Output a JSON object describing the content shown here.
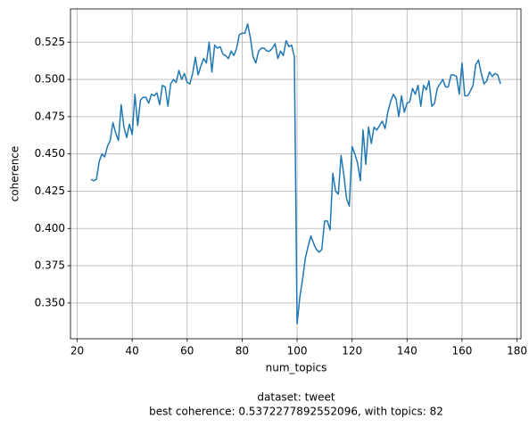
{
  "chart_data": {
    "type": "line",
    "xlabel": "num_topics",
    "ylabel": "coherence",
    "caption": [
      "dataset: tweet",
      "best coherence: 0.5372277892552096, with topics: 82"
    ],
    "x": [
      25,
      26,
      27,
      28,
      29,
      30,
      31,
      32,
      33,
      34,
      35,
      36,
      37,
      38,
      39,
      40,
      41,
      42,
      43,
      44,
      45,
      46,
      47,
      48,
      49,
      50,
      51,
      52,
      53,
      54,
      55,
      56,
      57,
      58,
      59,
      60,
      61,
      62,
      63,
      64,
      65,
      66,
      67,
      68,
      69,
      70,
      71,
      72,
      73,
      74,
      75,
      76,
      77,
      78,
      79,
      80,
      81,
      82,
      83,
      84,
      85,
      86,
      87,
      88,
      89,
      90,
      91,
      92,
      93,
      94,
      95,
      96,
      97,
      98,
      99,
      100,
      101,
      102,
      103,
      104,
      105,
      106,
      107,
      108,
      109,
      110,
      111,
      112,
      113,
      114,
      115,
      116,
      117,
      118,
      119,
      120,
      121,
      122,
      123,
      124,
      125,
      126,
      127,
      128,
      129,
      130,
      131,
      132,
      133,
      134,
      135,
      136,
      137,
      138,
      139,
      140,
      141,
      142,
      143,
      144,
      145,
      146,
      147,
      148,
      149,
      150,
      151,
      152,
      153,
      154,
      155,
      156,
      157,
      158,
      159,
      160,
      161,
      162,
      163,
      164,
      165,
      166,
      167,
      168,
      169,
      170,
      171,
      172,
      173,
      174
    ],
    "series": [
      {
        "name": "coherence",
        "color": "#1f77b4",
        "values": [
          0.433,
          0.432,
          0.433,
          0.445,
          0.45,
          0.448,
          0.455,
          0.459,
          0.471,
          0.464,
          0.459,
          0.483,
          0.468,
          0.461,
          0.47,
          0.463,
          0.49,
          0.469,
          0.486,
          0.488,
          0.488,
          0.484,
          0.49,
          0.489,
          0.491,
          0.483,
          0.496,
          0.495,
          0.482,
          0.497,
          0.5,
          0.498,
          0.506,
          0.5,
          0.504,
          0.498,
          0.497,
          0.504,
          0.515,
          0.503,
          0.509,
          0.514,
          0.511,
          0.525,
          0.505,
          0.523,
          0.521,
          0.522,
          0.517,
          0.516,
          0.514,
          0.519,
          0.516,
          0.521,
          0.53,
          0.531,
          0.531,
          0.5372277892552096,
          0.528,
          0.515,
          0.511,
          0.519,
          0.521,
          0.521,
          0.519,
          0.519,
          0.521,
          0.524,
          0.514,
          0.519,
          0.516,
          0.526,
          0.522,
          0.523,
          0.515,
          0.336,
          0.354,
          0.366,
          0.38,
          0.388,
          0.395,
          0.39,
          0.386,
          0.384,
          0.386,
          0.405,
          0.405,
          0.399,
          0.437,
          0.425,
          0.423,
          0.449,
          0.436,
          0.42,
          0.415,
          0.455,
          0.45,
          0.444,
          0.432,
          0.466,
          0.443,
          0.468,
          0.457,
          0.468,
          0.466,
          0.469,
          0.472,
          0.467,
          0.478,
          0.485,
          0.49,
          0.487,
          0.475,
          0.489,
          0.478,
          0.484,
          0.485,
          0.494,
          0.49,
          0.496,
          0.482,
          0.496,
          0.493,
          0.499,
          0.482,
          0.484,
          0.494,
          0.497,
          0.5,
          0.495,
          0.495,
          0.503,
          0.503,
          0.502,
          0.49,
          0.511,
          0.489,
          0.489,
          0.492,
          0.496,
          0.51,
          0.513,
          0.504,
          0.497,
          0.499,
          0.505,
          0.502,
          0.504,
          0.503,
          0.497
        ]
      }
    ],
    "xlim": [
      17.55,
      181.45
    ],
    "xticks": [
      20,
      40,
      60,
      80,
      100,
      120,
      140,
      160,
      180
    ],
    "ylim": [
      0.326,
      0.5473
    ],
    "yticks": [
      {
        "value": 0.35,
        "label": "0.350"
      },
      0.375,
      {
        "value": 0.4,
        "label": "0.400"
      },
      0.425,
      {
        "value": 0.45,
        "label": "0.450"
      },
      0.475,
      {
        "value": 0.5,
        "label": "0.500"
      },
      0.525
    ],
    "grid": true
  }
}
